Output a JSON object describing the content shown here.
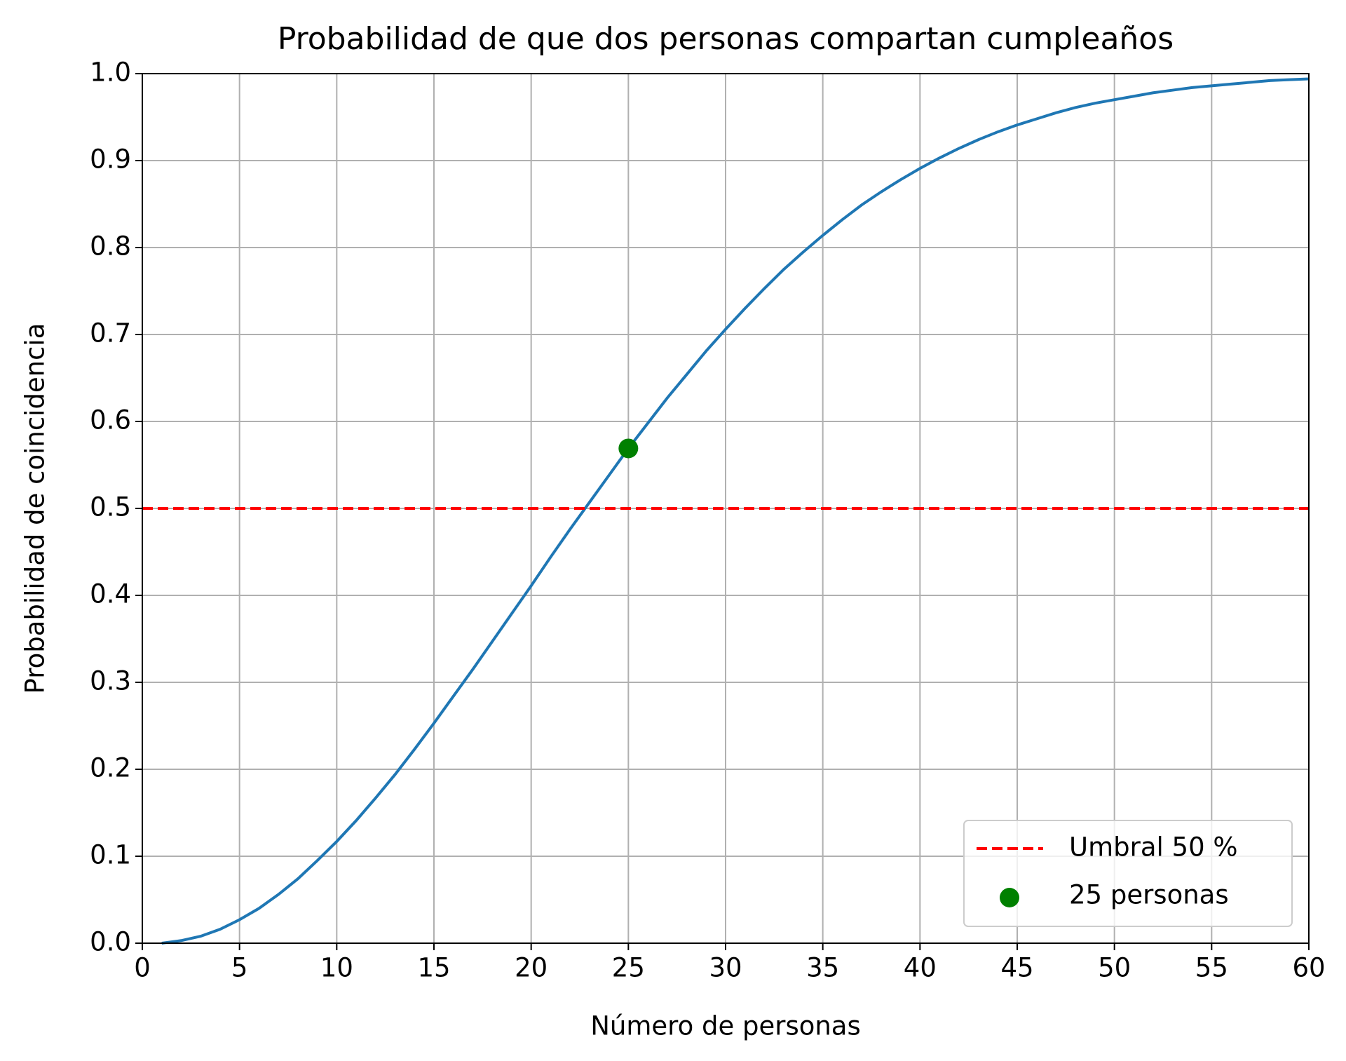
{
  "chart_data": {
    "type": "line",
    "title": "Probabilidad de que dos personas compartan cumpleaños",
    "x_label": "Número de personas",
    "y_label": "Probabilidad de coincidencia",
    "x": [
      1,
      2,
      3,
      4,
      5,
      6,
      7,
      8,
      9,
      10,
      11,
      12,
      13,
      14,
      15,
      16,
      17,
      18,
      19,
      20,
      21,
      22,
      23,
      24,
      25,
      26,
      27,
      28,
      29,
      30,
      31,
      32,
      33,
      34,
      35,
      36,
      37,
      38,
      39,
      40,
      41,
      42,
      43,
      44,
      45,
      46,
      47,
      48,
      49,
      50,
      51,
      52,
      53,
      54,
      55,
      56,
      57,
      58,
      59,
      60
    ],
    "series": [
      {
        "color": "#1f77b4",
        "values": [
          0,
          0.003,
          0.008,
          0.016,
          0.027,
          0.04,
          0.056,
          0.074,
          0.095,
          0.117,
          0.141,
          0.167,
          0.194,
          0.223,
          0.253,
          0.284,
          0.315,
          0.347,
          0.379,
          0.411,
          0.444,
          0.476,
          0.507,
          0.538,
          0.569,
          0.598,
          0.627,
          0.654,
          0.681,
          0.706,
          0.73,
          0.753,
          0.775,
          0.795,
          0.814,
          0.832,
          0.849,
          0.864,
          0.878,
          0.891,
          0.903,
          0.914,
          0.924,
          0.933,
          0.941,
          0.948,
          0.955,
          0.961,
          0.966,
          0.97,
          0.974,
          0.978,
          0.981,
          0.984,
          0.986,
          0.988,
          0.99,
          0.992,
          0.993,
          0.994
        ]
      }
    ],
    "reference_line": {
      "name": "Umbral 50 %",
      "value": 0.5,
      "color": "#ff0000",
      "style": "dashed"
    },
    "point": {
      "name": "25 personas",
      "x": 25,
      "y": 0.569,
      "color": "#008000"
    },
    "xlim": [
      0,
      60
    ],
    "xticks": [
      0,
      5,
      10,
      15,
      20,
      25,
      30,
      35,
      40,
      45,
      50,
      55,
      60
    ],
    "ylim": [
      0,
      1
    ],
    "yticks": [
      {
        "value": 0,
        "label": "0.0"
      },
      0.1,
      0.2,
      0.3,
      0.4,
      0.5,
      0.6,
      0.7,
      0.8,
      0.9,
      {
        "value": 1,
        "label": "1.0"
      }
    ],
    "grid": true,
    "legend": "lower right"
  }
}
